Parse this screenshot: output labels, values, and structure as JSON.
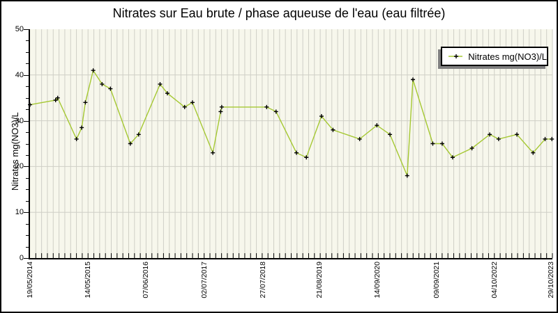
{
  "window": {
    "background": "#ffffff",
    "border_color": "#000000"
  },
  "chart_data": {
    "type": "line",
    "title": "Nitrates sur Eau brute / phase aqueuse de l'eau (eau filtrée)",
    "ylabel": "Nitrates mg(NO3)/L",
    "xlabel": "",
    "ylim": [
      0,
      50
    ],
    "y_tick_labels": [
      "0",
      "10",
      "20",
      "30",
      "40",
      "50"
    ],
    "y_major_tick_step": 10,
    "y_minor_tick_step": 2.5,
    "x_tick_labels": [
      "19/05/2014",
      "14/05/2015",
      "07/06/2016",
      "02/07/2017",
      "27/07/2018",
      "21/08/2019",
      "14/09/2020",
      "09/09/2021",
      "04/10/2022",
      "29/10/2023"
    ],
    "x_tick_positions": [
      0.001,
      0.112,
      0.223,
      0.335,
      0.447,
      0.555,
      0.666,
      0.78,
      0.891,
      0.998
    ],
    "x_minor_divisions": 90,
    "grid": true,
    "legend": {
      "label": "Nitrates mg(NO3)/L",
      "position": "top-right"
    },
    "colors": {
      "plot_bg": "#f7f7ec",
      "grid": "#cfcfc6",
      "axis": "#000000",
      "line": "#a5c832",
      "marker": "#000000"
    },
    "series": [
      {
        "name": "Nitrates mg(NO3)/L",
        "marker": "plus",
        "points": [
          [
            0.0,
            33.5
          ],
          [
            0.049,
            34.5
          ],
          [
            0.053,
            35.0
          ],
          [
            0.089,
            26.0
          ],
          [
            0.099,
            28.5
          ],
          [
            0.106,
            34.0
          ],
          [
            0.121,
            41.0
          ],
          [
            0.138,
            38.0
          ],
          [
            0.154,
            37.0
          ],
          [
            0.192,
            25.0
          ],
          [
            0.208,
            27.0
          ],
          [
            0.249,
            38.0
          ],
          [
            0.263,
            36.0
          ],
          [
            0.296,
            33.0
          ],
          [
            0.311,
            34.0
          ],
          [
            0.35,
            23.0
          ],
          [
            0.365,
            32.0
          ],
          [
            0.367,
            33.0
          ],
          [
            0.453,
            33.0
          ],
          [
            0.471,
            32.0
          ],
          [
            0.51,
            23.0
          ],
          [
            0.529,
            22.0
          ],
          [
            0.558,
            31.0
          ],
          [
            0.58,
            28.0
          ],
          [
            0.631,
            26.0
          ],
          [
            0.664,
            29.0
          ],
          [
            0.689,
            27.0
          ],
          [
            0.722,
            18.0
          ],
          [
            0.733,
            39.0
          ],
          [
            0.771,
            25.0
          ],
          [
            0.789,
            25.0
          ],
          [
            0.809,
            22.0
          ],
          [
            0.846,
            24.0
          ],
          [
            0.88,
            27.0
          ],
          [
            0.897,
            26.0
          ],
          [
            0.932,
            27.0
          ],
          [
            0.963,
            23.0
          ],
          [
            0.986,
            26.0
          ],
          [
            0.999,
            26.0
          ]
        ]
      }
    ]
  }
}
